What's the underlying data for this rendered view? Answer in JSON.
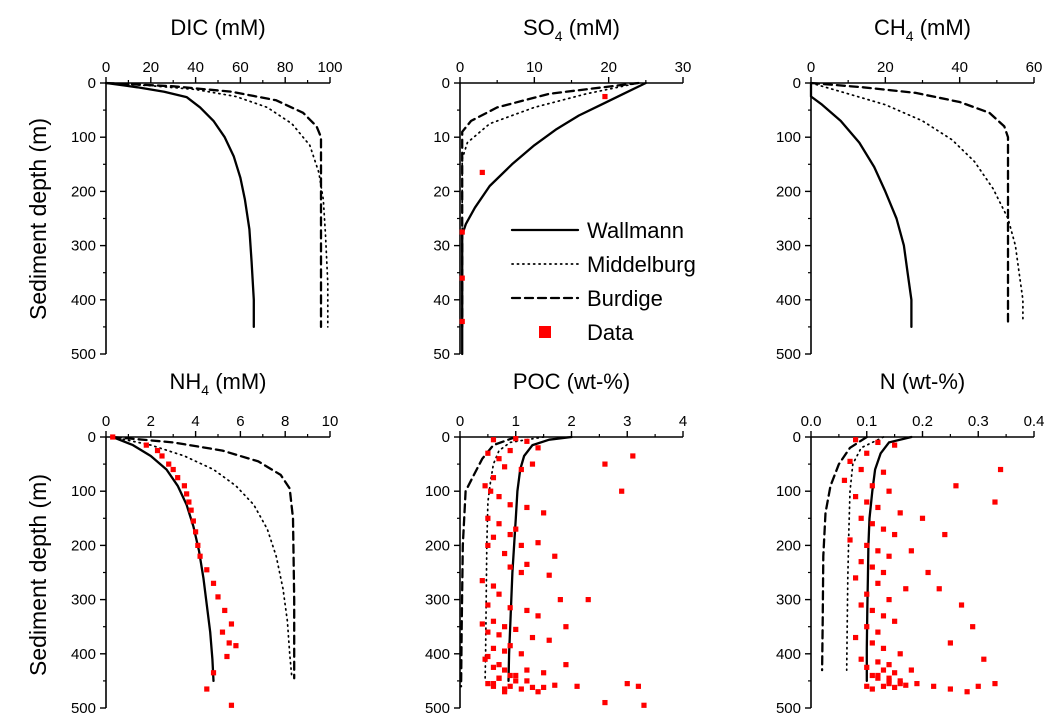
{
  "figure": {
    "y_axis_label": "Sediment depth (m)",
    "colors": {
      "axis": "#000000",
      "model": "#000000",
      "data": "#ff0000"
    },
    "legend": {
      "placement": "between top-middle and top-right panels",
      "entries": [
        {
          "label": "Wallmann",
          "style": "solid"
        },
        {
          "label": "Middelburg",
          "style": "dotted"
        },
        {
          "label": "Burdige",
          "style": "dashed"
        },
        {
          "label": "Data",
          "style": "square-marker"
        }
      ]
    }
  },
  "chart_data": [
    {
      "type": "line",
      "title_main": "DIC (mM)",
      "title_sub": "",
      "xlim": [
        0,
        100
      ],
      "xticks": [
        "0",
        "20",
        "40",
        "60",
        "80",
        "100"
      ],
      "ylim": [
        0,
        500
      ],
      "yticks": [
        "0",
        "100",
        "200",
        "300",
        "400",
        "500"
      ],
      "y_inverted": true,
      "series": [
        {
          "name": "Wallmann",
          "style": "solid",
          "x": [
            0,
            14,
            26,
            36,
            42,
            48,
            53,
            57,
            60,
            62,
            64,
            65,
            66,
            66
          ],
          "y": [
            0,
            8,
            16,
            26,
            45,
            70,
            100,
            135,
            175,
            215,
            270,
            330,
            400,
            450
          ]
        },
        {
          "name": "Middelburg",
          "style": "dotted",
          "x": [
            0,
            20,
            40,
            58,
            72,
            83,
            91,
            95,
            97,
            98,
            99,
            99
          ],
          "y": [
            0,
            5,
            12,
            25,
            45,
            75,
            115,
            165,
            215,
            280,
            370,
            450
          ]
        },
        {
          "name": "Burdige",
          "style": "dashed",
          "x": [
            0,
            30,
            56,
            76,
            88,
            94,
            96,
            96,
            96,
            96
          ],
          "y": [
            0,
            6,
            16,
            32,
            55,
            80,
            100,
            200,
            320,
            450
          ]
        }
      ]
    },
    {
      "type": "line",
      "title_main": "SO",
      "title_sub": "4",
      "title_tail": " (mM)",
      "xlim": [
        0,
        30
      ],
      "xticks": [
        "0",
        "10",
        "20",
        "30"
      ],
      "ylim": [
        0,
        50
      ],
      "yticks": [
        "0",
        "10",
        "20",
        "30",
        "40",
        "50"
      ],
      "y_inverted": true,
      "series": [
        {
          "name": "Wallmann",
          "style": "solid",
          "x": [
            25,
            22,
            19,
            16,
            13,
            10,
            7,
            4,
            2,
            0.8,
            0.3,
            0.3,
            0.3
          ],
          "y": [
            0,
            2,
            4,
            6,
            8.5,
            11.5,
            15,
            19,
            23,
            26,
            28,
            40,
            50
          ]
        },
        {
          "name": "Middelburg",
          "style": "dotted",
          "x": [
            24,
            17,
            10,
            4,
            1,
            0.3,
            0.3
          ],
          "y": [
            0,
            2,
            4.5,
            7.5,
            11,
            14,
            45
          ]
        },
        {
          "name": "Burdige",
          "style": "dashed",
          "x": [
            24,
            12,
            5,
            1.5,
            0.3,
            0.3
          ],
          "y": [
            0,
            2,
            4.5,
            7,
            9,
            45
          ]
        },
        {
          "name": "Data",
          "style": "square",
          "x": [
            19.5,
            3,
            0.3,
            0.3,
            0.3
          ],
          "y": [
            2.5,
            16.5,
            27.5,
            36,
            44
          ]
        }
      ]
    },
    {
      "type": "line",
      "title_main": "CH",
      "title_sub": "4",
      "title_tail": " (mM)",
      "xlim": [
        0,
        60
      ],
      "xticks": [
        "0",
        "20",
        "40",
        "60"
      ],
      "ylim": [
        0,
        500
      ],
      "yticks": [
        "0",
        "100",
        "200",
        "300",
        "400",
        "500"
      ],
      "y_inverted": true,
      "series": [
        {
          "name": "Wallmann",
          "style": "solid",
          "x": [
            0,
            0,
            3,
            8,
            13,
            17,
            20,
            23,
            25,
            26,
            27,
            27
          ],
          "y": [
            0,
            25,
            40,
            70,
            110,
            155,
            200,
            250,
            300,
            350,
            400,
            450
          ]
        },
        {
          "name": "Middelburg",
          "style": "dotted",
          "x": [
            0,
            10,
            20,
            30,
            38,
            44,
            49,
            53,
            55,
            56,
            57,
            57
          ],
          "y": [
            0,
            20,
            40,
            70,
            105,
            145,
            195,
            250,
            300,
            350,
            400,
            440
          ]
        },
        {
          "name": "Burdige",
          "style": "dashed",
          "x": [
            0,
            14,
            28,
            40,
            48,
            52,
            53,
            53,
            53,
            53,
            53
          ],
          "y": [
            0,
            8,
            18,
            35,
            55,
            80,
            100,
            200,
            300,
            400,
            440
          ]
        }
      ]
    },
    {
      "type": "line",
      "title_main": "NH",
      "title_sub": "4",
      "title_tail": " (mM)",
      "xlim": [
        0,
        10
      ],
      "xticks": [
        "0",
        "2",
        "4",
        "6",
        "8",
        "10"
      ],
      "ylim": [
        0,
        500
      ],
      "yticks": [
        "0",
        "100",
        "200",
        "300",
        "400",
        "500"
      ],
      "y_inverted": true,
      "series": [
        {
          "name": "Wallmann",
          "style": "solid",
          "x": [
            0.3,
            1.2,
            2.0,
            2.7,
            3.2,
            3.6,
            3.9,
            4.15,
            4.35,
            4.5,
            4.65,
            4.75,
            4.8
          ],
          "y": [
            0,
            15,
            35,
            60,
            90,
            125,
            165,
            210,
            260,
            310,
            360,
            410,
            450
          ]
        },
        {
          "name": "Middelburg",
          "style": "dotted",
          "x": [
            0.3,
            2.0,
            3.5,
            4.8,
            5.8,
            6.6,
            7.2,
            7.6,
            7.9,
            8.1,
            8.2,
            8.3
          ],
          "y": [
            0,
            15,
            35,
            60,
            90,
            125,
            170,
            220,
            280,
            340,
            400,
            445
          ]
        },
        {
          "name": "Burdige",
          "style": "dashed",
          "x": [
            0.3,
            3,
            5.2,
            6.8,
            7.8,
            8.2,
            8.35,
            8.4,
            8.4
          ],
          "y": [
            0,
            10,
            25,
            45,
            70,
            95,
            150,
            300,
            445
          ]
        },
        {
          "name": "Data",
          "style": "square",
          "x": [
            0.3,
            1.8,
            2.3,
            2.5,
            2.8,
            3.0,
            3.2,
            3.5,
            3.6,
            3.7,
            3.8,
            3.9,
            4.0,
            4.1,
            4.2,
            4.5,
            4.8,
            5.0,
            5.3,
            5.6,
            5.2,
            5.5,
            5.8,
            5.4,
            4.8,
            4.5,
            5.6
          ],
          "y": [
            0,
            15,
            25,
            35,
            50,
            60,
            75,
            90,
            105,
            120,
            135,
            155,
            175,
            200,
            220,
            245,
            270,
            295,
            320,
            345,
            360,
            380,
            385,
            405,
            435,
            465,
            495
          ]
        }
      ]
    },
    {
      "type": "scatter",
      "title_main": "POC (wt-%)",
      "title_sub": "",
      "xlim": [
        0,
        4
      ],
      "xticks": [
        "0",
        "1",
        "2",
        "3",
        "4"
      ],
      "ylim": [
        0,
        500
      ],
      "yticks": [
        "0",
        "100",
        "200",
        "300",
        "400",
        "500"
      ],
      "y_inverted": true,
      "series": [
        {
          "name": "Wallmann",
          "style": "solid",
          "x": [
            2.0,
            1.6,
            1.3,
            1.15,
            1.08,
            1.03,
            1.0,
            0.97,
            0.94,
            0.92,
            0.9,
            0.88,
            0.87
          ],
          "y": [
            0,
            5,
            15,
            35,
            60,
            100,
            150,
            200,
            250,
            300,
            350,
            400,
            450
          ]
        },
        {
          "name": "Middelburg",
          "style": "dotted",
          "x": [
            1.5,
            0.9,
            0.7,
            0.6,
            0.55,
            0.5,
            0.48,
            0.47,
            0.46,
            0.45
          ],
          "y": [
            0,
            10,
            25,
            50,
            80,
            120,
            200,
            300,
            400,
            450
          ]
        },
        {
          "name": "Burdige",
          "style": "dashed",
          "x": [
            1.0,
            0.6,
            0.4,
            0.25,
            0.1,
            0.05,
            0.03,
            0.02
          ],
          "y": [
            0,
            15,
            40,
            70,
            100,
            200,
            350,
            460
          ]
        },
        {
          "name": "Data",
          "style": "square",
          "x": [
            0.6,
            1.0,
            1.2,
            1.4,
            0.9,
            0.5,
            0.7,
            0.8,
            1.1,
            1.3,
            0.6,
            0.45,
            0.55,
            0.7,
            0.9,
            1.2,
            1.5,
            0.5,
            0.7,
            1.0,
            0.6,
            1.4,
            0.5,
            0.8,
            1.7,
            1.2,
            0.9,
            2.6,
            3.1,
            2.9,
            1.1,
            1.6,
            0.4,
            0.6,
            0.7,
            1.8,
            0.5,
            0.9,
            1.2,
            1.4,
            0.6,
            0.4,
            0.8,
            1.0,
            0.5,
            0.7,
            1.3,
            1.6,
            0.9,
            0.6,
            0.8,
            1.1,
            0.5,
            0.45,
            0.7,
            1.9,
            0.6,
            0.8,
            1.2,
            1.5,
            0.9,
            0.7,
            1.0,
            0.5,
            0.6,
            0.9,
            1.3,
            1.1,
            0.8,
            1.5,
            1.7,
            2.1,
            0.7,
            1.0,
            0.6,
            1.2,
            0.8,
            1.4,
            3.0,
            3.2,
            2.6,
            3.3,
            1.9,
            2.3,
            0.9,
            1.1
          ],
          "y": [
            5,
            3,
            8,
            20,
            25,
            30,
            40,
            55,
            60,
            50,
            75,
            90,
            100,
            110,
            125,
            130,
            140,
            150,
            160,
            170,
            185,
            195,
            200,
            215,
            220,
            235,
            240,
            50,
            35,
            100,
            250,
            255,
            265,
            275,
            290,
            300,
            310,
            315,
            320,
            330,
            340,
            345,
            350,
            355,
            360,
            365,
            370,
            375,
            385,
            390,
            395,
            400,
            405,
            410,
            420,
            420,
            425,
            430,
            430,
            435,
            440,
            445,
            450,
            455,
            460,
            460,
            462,
            465,
            465,
            462,
            458,
            460,
            445,
            440,
            455,
            450,
            470,
            470,
            455,
            460,
            490,
            495,
            350,
            300,
            180,
            200
          ]
        }
      ]
    },
    {
      "type": "scatter",
      "title_main": "N (wt-%)",
      "title_sub": "",
      "xlim": [
        0,
        0.4
      ],
      "xticks": [
        "0.0",
        "0.1",
        "0.2",
        "0.3",
        "0.4"
      ],
      "ylim": [
        0,
        500
      ],
      "yticks": [
        "0",
        "100",
        "200",
        "300",
        "400",
        "500"
      ],
      "y_inverted": true,
      "series": [
        {
          "name": "Wallmann",
          "style": "solid",
          "x": [
            0.18,
            0.14,
            0.125,
            0.115,
            0.11,
            0.105,
            0.103,
            0.102,
            0.101,
            0.1,
            0.1
          ],
          "y": [
            0,
            10,
            30,
            60,
            100,
            150,
            200,
            260,
            320,
            390,
            450
          ]
        },
        {
          "name": "Middelburg",
          "style": "dotted",
          "x": [
            0.13,
            0.09,
            0.075,
            0.07,
            0.068,
            0.066,
            0.065,
            0.064
          ],
          "y": [
            0,
            20,
            50,
            100,
            170,
            260,
            350,
            430
          ]
        },
        {
          "name": "Burdige",
          "style": "dashed",
          "x": [
            0.1,
            0.07,
            0.05,
            0.035,
            0.026,
            0.022,
            0.021,
            0.02
          ],
          "y": [
            0,
            20,
            50,
            90,
            140,
            220,
            340,
            430
          ]
        },
        {
          "name": "Data",
          "style": "square",
          "x": [
            0.08,
            0.12,
            0.15,
            0.1,
            0.07,
            0.09,
            0.13,
            0.06,
            0.11,
            0.14,
            0.08,
            0.1,
            0.12,
            0.16,
            0.09,
            0.11,
            0.13,
            0.15,
            0.07,
            0.1,
            0.12,
            0.14,
            0.09,
            0.11,
            0.13,
            0.08,
            0.12,
            0.17,
            0.1,
            0.14,
            0.09,
            0.11,
            0.13,
            0.15,
            0.1,
            0.12,
            0.08,
            0.11,
            0.13,
            0.16,
            0.09,
            0.12,
            0.14,
            0.1,
            0.13,
            0.15,
            0.11,
            0.12,
            0.14,
            0.16,
            0.1,
            0.13,
            0.15,
            0.17,
            0.11,
            0.14,
            0.19,
            0.22,
            0.25,
            0.28,
            0.3,
            0.33,
            0.34,
            0.26,
            0.33,
            0.2,
            0.24,
            0.18,
            0.21,
            0.23,
            0.27,
            0.29,
            0.25,
            0.31,
            0.18,
            0.12,
            0.14,
            0.16
          ],
          "y": [
            5,
            10,
            15,
            30,
            45,
            60,
            65,
            80,
            90,
            100,
            110,
            120,
            130,
            140,
            150,
            160,
            170,
            180,
            190,
            200,
            210,
            220,
            230,
            240,
            250,
            260,
            270,
            280,
            290,
            300,
            310,
            320,
            330,
            340,
            350,
            360,
            370,
            380,
            390,
            400,
            410,
            415,
            420,
            425,
            430,
            435,
            440,
            445,
            450,
            455,
            460,
            460,
            462,
            458,
            465,
            455,
            455,
            460,
            465,
            470,
            460,
            455,
            60,
            90,
            120,
            150,
            180,
            210,
            250,
            280,
            310,
            350,
            380,
            410,
            430,
            440,
            445,
            450
          ]
        }
      ]
    }
  ]
}
